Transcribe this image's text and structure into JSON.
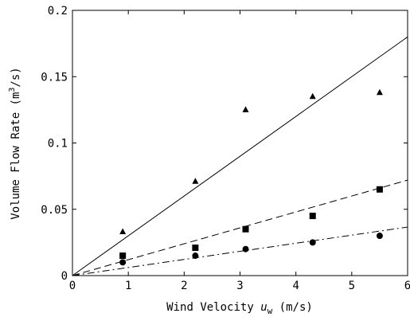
{
  "chart_data": {
    "type": "scatter",
    "title": "",
    "xlabel": "Wind Velocity u_w (m/s)",
    "xlabel_main": "Wind Velocity ",
    "xlabel_symbol": "u",
    "xlabel_sub": "w",
    "xlabel_unit": " (m/s)",
    "ylabel": "Volume Flow Rate (m³/s)",
    "ylabel_main": "Volume Flow Rate (m",
    "ylabel_sup": "3",
    "ylabel_end": "/s)",
    "xlim": [
      0,
      6
    ],
    "ylim": [
      0,
      0.2
    ],
    "xticks": [
      0,
      1,
      2,
      3,
      4,
      5,
      6
    ],
    "xtick_labels": [
      "0",
      "1",
      "2",
      "3",
      "4",
      "5",
      "6"
    ],
    "yticks": [
      0,
      0.05,
      0.1,
      0.15,
      0.2
    ],
    "ytick_labels": [
      "0",
      "0.05",
      "0.1",
      "0.15",
      "0.2"
    ],
    "grid": false,
    "series": [
      {
        "marker": "triangle",
        "x": [
          0.9,
          2.2,
          3.1,
          4.3,
          5.5
        ],
        "y": [
          0.033,
          0.071,
          0.125,
          0.135,
          0.138
        ],
        "fit": {
          "style": "solid",
          "slope": 0.03
        }
      },
      {
        "marker": "square",
        "x": [
          0.9,
          2.2,
          3.1,
          4.3,
          5.5
        ],
        "y": [
          0.015,
          0.021,
          0.035,
          0.045,
          0.065
        ],
        "fit": {
          "style": "dashed",
          "slope": 0.012
        }
      },
      {
        "marker": "circle",
        "x": [
          0.9,
          2.2,
          3.1,
          4.3,
          5.5
        ],
        "y": [
          0.01,
          0.015,
          0.02,
          0.025,
          0.03
        ],
        "fit": {
          "style": "dashdot",
          "slope": 0.0061
        }
      }
    ]
  }
}
